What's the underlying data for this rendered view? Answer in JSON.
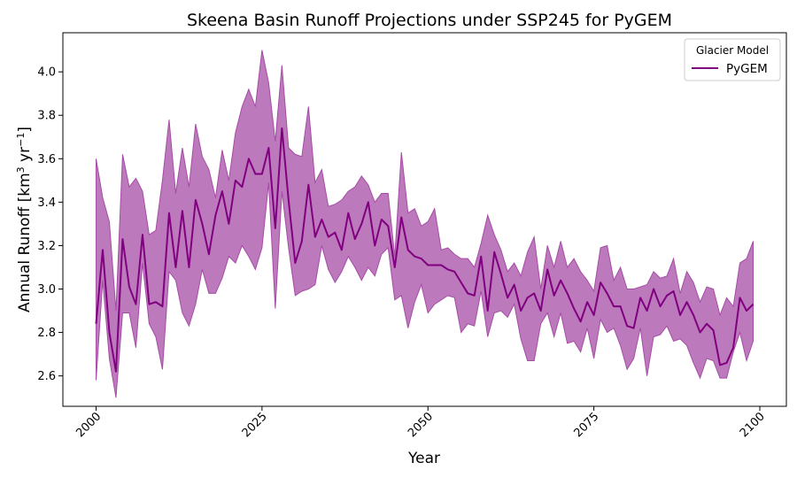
{
  "chart_data": {
    "type": "line",
    "title": "Skeena Basin Runoff Projections under SSP245 for PyGEM",
    "xlabel": "Year",
    "ylabel_main": "Annual Runoff [km",
    "ylabel_sup1": "3",
    "ylabel_mid": " yr",
    "ylabel_sup2": "−1",
    "ylabel_end": "]",
    "xlim": [
      1995,
      2104
    ],
    "ylim": [
      2.46,
      4.18
    ],
    "xticks": [
      2000,
      2025,
      2050,
      2075,
      2100
    ],
    "yticks": [
      2.6,
      2.8,
      3.0,
      3.2,
      3.4,
      3.6,
      3.8,
      4.0
    ],
    "ytick_labels": [
      "2.6",
      "2.8",
      "3.0",
      "3.2",
      "3.4",
      "3.6",
      "3.8",
      "4.0"
    ],
    "grid": false,
    "legend": {
      "title": "Glacier Model",
      "placement": "top-right"
    },
    "colors": {
      "line": "#800080",
      "band": "#a64ca6"
    },
    "band_alpha": 0.75,
    "series": [
      {
        "name": "PyGEM",
        "x_start": 2000,
        "mean": [
          2.84,
          3.18,
          2.8,
          2.62,
          3.23,
          3.01,
          2.93,
          3.25,
          2.93,
          2.94,
          2.92,
          3.35,
          3.1,
          3.36,
          3.1,
          3.41,
          3.3,
          3.16,
          3.34,
          3.45,
          3.3,
          3.5,
          3.47,
          3.6,
          3.53,
          3.53,
          3.65,
          3.28,
          3.74,
          3.41,
          3.12,
          3.22,
          3.48,
          3.24,
          3.32,
          3.24,
          3.26,
          3.18,
          3.35,
          3.23,
          3.3,
          3.4,
          3.2,
          3.32,
          3.29,
          3.1,
          3.33,
          3.18,
          3.15,
          3.14,
          3.11,
          3.11,
          3.11,
          3.09,
          3.08,
          3.03,
          2.98,
          2.97,
          3.15,
          2.9,
          3.17,
          3.07,
          2.96,
          3.02,
          2.9,
          2.96,
          2.98,
          2.9,
          3.09,
          2.97,
          3.04,
          2.98,
          2.91,
          2.85,
          2.94,
          2.88,
          3.03,
          2.98,
          2.92,
          2.92,
          2.83,
          2.82,
          2.96,
          2.9,
          3.0,
          2.92,
          2.97,
          2.99,
          2.88,
          2.94,
          2.88,
          2.8,
          2.84,
          2.81,
          2.65,
          2.66,
          2.73,
          2.96,
          2.9,
          2.93
        ],
        "upper": [
          3.6,
          3.42,
          3.31,
          2.9,
          3.62,
          3.47,
          3.51,
          3.45,
          3.25,
          3.27,
          3.5,
          3.78,
          3.44,
          3.65,
          3.47,
          3.76,
          3.61,
          3.55,
          3.42,
          3.64,
          3.5,
          3.72,
          3.84,
          3.92,
          3.84,
          4.1,
          3.95,
          3.68,
          4.03,
          3.65,
          3.62,
          3.61,
          3.84,
          3.49,
          3.55,
          3.38,
          3.39,
          3.41,
          3.45,
          3.47,
          3.52,
          3.48,
          3.4,
          3.44,
          3.44,
          3.15,
          3.63,
          3.35,
          3.37,
          3.29,
          3.31,
          3.37,
          3.18,
          3.19,
          3.16,
          3.14,
          3.14,
          3.1,
          3.21,
          3.34,
          3.25,
          3.18,
          3.08,
          3.12,
          3.06,
          3.17,
          3.24,
          3.0,
          3.2,
          3.1,
          3.22,
          3.1,
          3.14,
          3.08,
          3.04,
          2.99,
          3.19,
          3.2,
          3.04,
          3.1,
          3.0,
          3.0,
          3.01,
          3.02,
          3.08,
          3.05,
          3.06,
          3.14,
          2.98,
          3.08,
          3.03,
          2.94,
          3.01,
          3.0,
          2.88,
          2.96,
          2.92,
          3.12,
          3.14,
          3.22
        ],
        "lower": [
          2.58,
          3.04,
          2.68,
          2.5,
          2.89,
          2.89,
          2.73,
          3.12,
          2.84,
          2.78,
          2.63,
          3.08,
          3.04,
          2.89,
          2.83,
          2.93,
          3.09,
          2.98,
          2.98,
          3.05,
          3.15,
          3.12,
          3.2,
          3.15,
          3.09,
          3.19,
          3.49,
          2.91,
          3.45,
          3.19,
          2.97,
          2.99,
          3.0,
          3.02,
          3.2,
          3.09,
          3.03,
          3.08,
          3.15,
          3.1,
          3.04,
          3.1,
          3.06,
          3.16,
          3.19,
          2.95,
          2.97,
          2.82,
          2.94,
          3.02,
          2.89,
          2.93,
          2.95,
          2.97,
          2.96,
          2.8,
          2.84,
          2.83,
          2.99,
          2.78,
          2.89,
          2.9,
          2.87,
          2.93,
          2.77,
          2.67,
          2.67,
          2.84,
          2.89,
          2.78,
          2.89,
          2.75,
          2.76,
          2.71,
          2.82,
          2.68,
          2.86,
          2.8,
          2.82,
          2.74,
          2.63,
          2.68,
          2.82,
          2.6,
          2.78,
          2.79,
          2.83,
          2.76,
          2.77,
          2.74,
          2.66,
          2.59,
          2.68,
          2.67,
          2.59,
          2.59,
          2.71,
          2.8,
          2.67,
          2.76
        ]
      }
    ]
  }
}
